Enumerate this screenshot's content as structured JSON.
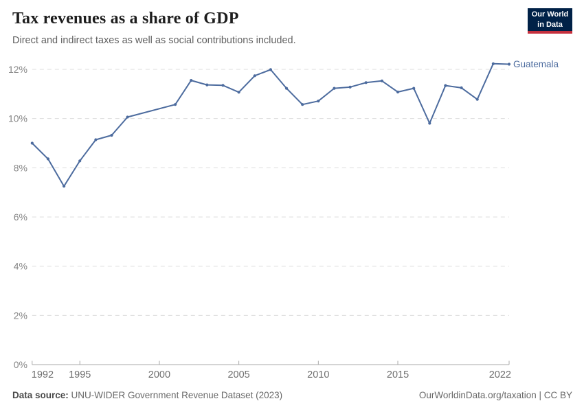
{
  "header": {
    "title": "Tax revenues as a share of GDP",
    "subtitle": "Direct and indirect taxes as well as social contributions included."
  },
  "logo": {
    "line1": "Our World",
    "line2": "in Data"
  },
  "colors": {
    "line": "#4C6B9E",
    "grid": "#dcdcdc",
    "axis": "#a8a8a8",
    "y_tick_label": "#858585",
    "x_tick_label": "#6e6e6e",
    "logo_bg": "#002147",
    "logo_accent": "#C5303E"
  },
  "chart_data": {
    "type": "line",
    "title": "Tax revenues as a share of GDP",
    "series_name": "Guatemala",
    "unit": "%",
    "xlim": [
      1992,
      2022
    ],
    "ylim": [
      0,
      12
    ],
    "x_ticks": [
      1992,
      1995,
      2000,
      2005,
      2010,
      2015,
      2022
    ],
    "y_ticks": [
      0,
      2,
      4,
      6,
      8,
      10,
      12
    ],
    "y_tick_suffix": "%",
    "grid": "horizontal-dashed",
    "legend_position": "line-end-label",
    "points": [
      {
        "year": 1992,
        "value": 9.0
      },
      {
        "year": 1993,
        "value": 8.36
      },
      {
        "year": 1994,
        "value": 7.25
      },
      {
        "year": 1995,
        "value": 8.28
      },
      {
        "year": 1996,
        "value": 9.14
      },
      {
        "year": 1997,
        "value": 9.32
      },
      {
        "year": 1998,
        "value": 10.06
      },
      {
        "year": 2001,
        "value": 10.57
      },
      {
        "year": 2002,
        "value": 11.55
      },
      {
        "year": 2003,
        "value": 11.37
      },
      {
        "year": 2004,
        "value": 11.35
      },
      {
        "year": 2005,
        "value": 11.07
      },
      {
        "year": 2006,
        "value": 11.74
      },
      {
        "year": 2007,
        "value": 11.99
      },
      {
        "year": 2008,
        "value": 11.23
      },
      {
        "year": 2009,
        "value": 10.57
      },
      {
        "year": 2010,
        "value": 10.71
      },
      {
        "year": 2011,
        "value": 11.23
      },
      {
        "year": 2012,
        "value": 11.28
      },
      {
        "year": 2013,
        "value": 11.46
      },
      {
        "year": 2014,
        "value": 11.53
      },
      {
        "year": 2015,
        "value": 11.08
      },
      {
        "year": 2016,
        "value": 11.23
      },
      {
        "year": 2017,
        "value": 9.81
      },
      {
        "year": 2018,
        "value": 11.34
      },
      {
        "year": 2019,
        "value": 11.25
      },
      {
        "year": 2020,
        "value": 10.78
      },
      {
        "year": 2021,
        "value": 12.23
      },
      {
        "year": 2022,
        "value": 12.21
      }
    ]
  },
  "footer": {
    "source_label": "Data source:",
    "source_text": "UNU-WIDER Government Revenue Dataset (2023)",
    "attribution": "OurWorldinData.org/taxation | CC BY"
  }
}
